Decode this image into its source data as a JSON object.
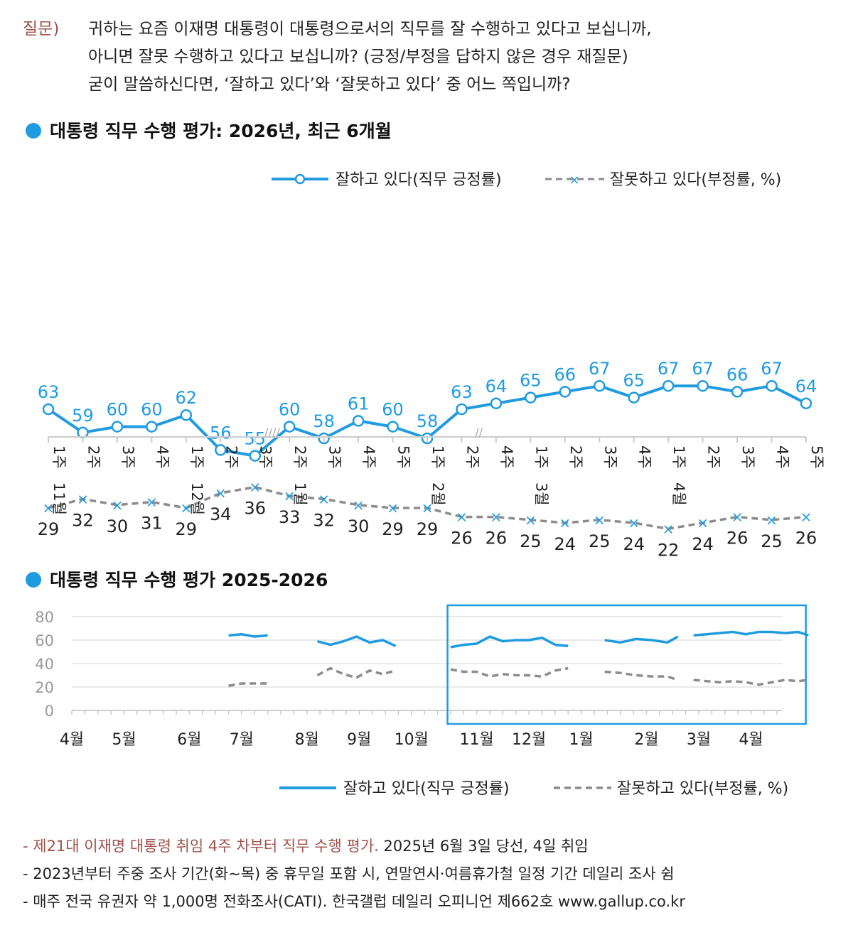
{
  "question": {
    "label": "질문)",
    "lines": [
      "귀하는 요즘 이재명 대통령이 대통령으로서의 직무를 잘 수행하고 있다고 보십니까,",
      "아니면 잘못 수행하고 있다고 보십니까? (긍정/부정을 답하지 않은 경우 재질문)",
      "굳이 말씀하신다면, ‘잘하고 있다’와 ‘잘못하고 있다’ 중 어느 쪽입니까?"
    ]
  },
  "colors": {
    "positive": "#1f9be0",
    "negative": "#8c8c8c",
    "highlight": "#a0524a",
    "frame": "#1f9be0"
  },
  "chart_data": [
    {
      "type": "line",
      "title": "대통령 직무 수행 평가: 2026년, 최근 6개월",
      "legend_placement": "top-right",
      "grid": false,
      "x": [
        {
          "week": "1주",
          "month": "11월"
        },
        {
          "week": "2주",
          "month": ""
        },
        {
          "week": "3주",
          "month": ""
        },
        {
          "week": "4주",
          "month": ""
        },
        {
          "week": "1주",
          "month": "12월"
        },
        {
          "week": "2주",
          "month": ""
        },
        {
          "week": "3주",
          "month": ""
        },
        {
          "week": "2주",
          "month": "1월"
        },
        {
          "week": "3주",
          "month": ""
        },
        {
          "week": "4주",
          "month": ""
        },
        {
          "week": "5주",
          "month": ""
        },
        {
          "week": "1주",
          "month": "2월"
        },
        {
          "week": "2주",
          "month": ""
        },
        {
          "week": "4주",
          "month": ""
        },
        {
          "week": "1주",
          "month": "3월"
        },
        {
          "week": "2주",
          "month": ""
        },
        {
          "week": "3주",
          "month": ""
        },
        {
          "week": "4주",
          "month": ""
        },
        {
          "week": "1주",
          "month": "4월"
        },
        {
          "week": "2주",
          "month": ""
        },
        {
          "week": "3주",
          "month": ""
        },
        {
          "week": "4주",
          "month": ""
        },
        {
          "week": "5주",
          "month": ""
        }
      ],
      "axis_breaks": [
        {
          "after_index": 6,
          "mark": "////"
        },
        {
          "after_index": 12,
          "mark": "//"
        }
      ],
      "series": [
        {
          "name": "잘하고 있다(직무 긍정률)",
          "values": [
            63,
            59,
            60,
            60,
            62,
            56,
            55,
            60,
            58,
            61,
            60,
            58,
            63,
            64,
            65,
            66,
            67,
            65,
            67,
            67,
            66,
            67,
            64
          ]
        },
        {
          "name": "잘못하고 있다(부정률, %)",
          "values": [
            29,
            32,
            30,
            31,
            29,
            34,
            36,
            33,
            32,
            30,
            29,
            29,
            26,
            26,
            25,
            24,
            25,
            24,
            22,
            24,
            26,
            25,
            26
          ]
        }
      ]
    },
    {
      "type": "line",
      "title": "대통령 직무 수행 평가 2025-2026",
      "legend_placement": "bottom-right",
      "grid": true,
      "ylim": [
        0,
        80
      ],
      "yticks": [
        0,
        20,
        40,
        60,
        80
      ],
      "xlim": [
        0,
        13.6
      ],
      "month_ticks": [
        {
          "label": "4월",
          "x": 0
        },
        {
          "label": "5월",
          "x": 1
        },
        {
          "label": "6월",
          "x": 2.25
        },
        {
          "label": "7월",
          "x": 3.25
        },
        {
          "label": "8월",
          "x": 4.5
        },
        {
          "label": "9월",
          "x": 5.5
        },
        {
          "label": "10월",
          "x": 6.5
        },
        {
          "label": "11월",
          "x": 7.75
        },
        {
          "label": "12월",
          "x": 8.75
        },
        {
          "label": "1월",
          "x": 9.75
        },
        {
          "label": "2월",
          "x": 11
        },
        {
          "label": "3월",
          "x": 12
        },
        {
          "label": "4월",
          "x": 13
        }
      ],
      "highlight_range": [
        7.3,
        14.05
      ],
      "series": [
        {
          "name": "잘하고 있다(직무 긍정률)",
          "segments": [
            {
              "x": [
                3,
                3.25,
                3.5,
                3.75
              ],
              "values": [
                64,
                65,
                63,
                64
              ]
            },
            {
              "x": [
                4.7,
                4.95,
                5.2,
                5.45,
                5.7,
                5.95,
                6.2
              ],
              "values": [
                59,
                56,
                59,
                63,
                58,
                60,
                55
              ]
            },
            {
              "x": [
                7.25,
                7.5,
                7.75,
                8,
                8.25,
                8.5,
                8.75,
                9,
                9.25
              ],
              "values": [
                54,
                56,
                57,
                63,
                59,
                60,
                60,
                62,
                56
              ]
            },
            {
              "x": [
                9.25,
                9.5
              ],
              "values": [
                56,
                55
              ]
            },
            {
              "x": [
                10.2,
                10.5,
                10.8,
                11.1,
                11.4,
                11.6
              ],
              "values": [
                60,
                58,
                61,
                60,
                58,
                63
              ]
            },
            {
              "x": [
                11.9,
                12.15,
                12.4,
                12.65,
                12.9,
                13.15,
                13.4,
                13.65,
                13.9,
                14.1
              ],
              "values": [
                64,
                65,
                66,
                67,
                65,
                67,
                67,
                66,
                67,
                64
              ]
            }
          ]
        },
        {
          "name": "잘못하고 있다(부정률, %)",
          "segments": [
            {
              "x": [
                3,
                3.25,
                3.5,
                3.75
              ],
              "values": [
                21,
                23,
                23,
                23
              ]
            },
            {
              "x": [
                4.7,
                4.95,
                5.2,
                5.45,
                5.7,
                5.95,
                6.2
              ],
              "values": [
                30,
                36,
                31,
                28,
                34,
                31,
                34
              ]
            },
            {
              "x": [
                7.25,
                7.5,
                7.75,
                8,
                8.25,
                8.5,
                8.75,
                9,
                9.25,
                9.5
              ],
              "values": [
                35,
                33,
                33,
                29,
                31,
                30,
                30,
                29,
                34,
                36
              ]
            },
            {
              "x": [
                10.2,
                10.5,
                10.8,
                11.1,
                11.4,
                11.6
              ],
              "values": [
                33,
                32,
                30,
                29,
                29,
                26
              ]
            },
            {
              "x": [
                11.9,
                12.15,
                12.4,
                12.65,
                12.9,
                13.15,
                13.4,
                13.65,
                13.9,
                14.1
              ],
              "values": [
                26,
                25,
                24,
                25,
                24,
                22,
                24,
                26,
                25,
                26
              ]
            }
          ]
        }
      ]
    }
  ],
  "notes": [
    {
      "highlight": "- 제21대 이재명 대통령 취임 4주 차부터 직무 수행 평가.",
      "rest": " 2025년 6월 3일 당선, 4일 취임"
    },
    {
      "highlight": "",
      "rest": "- 2023년부터 주중 조사 기간(화~목) 중 휴무일 포함 시, 연말연시·여름휴가철 일정 기간 데일리 조사 쉼"
    },
    {
      "highlight": "",
      "rest": "- 매주 전국 유권자 약 1,000명 전화조사(CATI). 한국갤럽 데일리 오피니언 제662호 www.gallup.co.kr"
    }
  ]
}
